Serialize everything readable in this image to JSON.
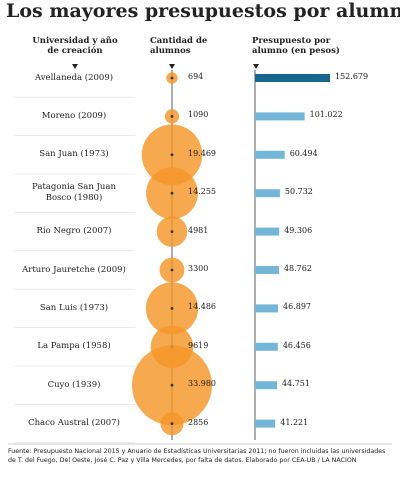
{
  "chart_data": {
    "type": "bubble-bar",
    "title": "Los mayores presupuestos por alumno",
    "category_label": "Universidad y año de creación",
    "categories": [
      "Avellaneda (2009)",
      "Moreno (2009)",
      "San Juan (1973)",
      "Patagonia San Juan Bosco (1980)",
      "Río Negro (2007)",
      "Arturo Jauretche (2009)",
      "San Luis (1973)",
      "La Pampa (1958)",
      "Cuyo (1939)",
      "Chaco Austral (2007)"
    ],
    "series": [
      {
        "name": "Cantidad de alumnos",
        "color": "#f5962a",
        "values": [
          694,
          1090,
          19469,
          14255,
          4981,
          3300,
          14486,
          9619,
          33980,
          2856
        ],
        "value_labels": [
          "694",
          "1090",
          "19.469",
          "14.255",
          "4981",
          "3300",
          "14.486",
          "9619",
          "33.980",
          "2856"
        ]
      },
      {
        "name": "Presupuesto por alumno (en pesos)",
        "colors": [
          "#17668f",
          "#74b6d8",
          "#74b6d8",
          "#74b6d8",
          "#74b6d8",
          "#74b6d8",
          "#74b6d8",
          "#74b6d8",
          "#74b6d8",
          "#74b6d8"
        ],
        "values": [
          152679,
          101022,
          60494,
          50732,
          49306,
          48762,
          46897,
          46456,
          44751,
          41221
        ],
        "value_labels": [
          "152.679",
          "101.022",
          "60.494",
          "50.732",
          "49.306",
          "48.762",
          "46.897",
          "46.456",
          "44.751",
          "41.221"
        ]
      }
    ],
    "source": "Fuente: Presupuesto Nacional 2015 y Anuario de Estadísticas Universitarias 2011; no fueron incluidas las universidades de T. del Fuego, Del Oeste, José C. Paz y Villa Mercedes, por falta de datos. Elaborado por CEA-UB / LA NACION"
  }
}
